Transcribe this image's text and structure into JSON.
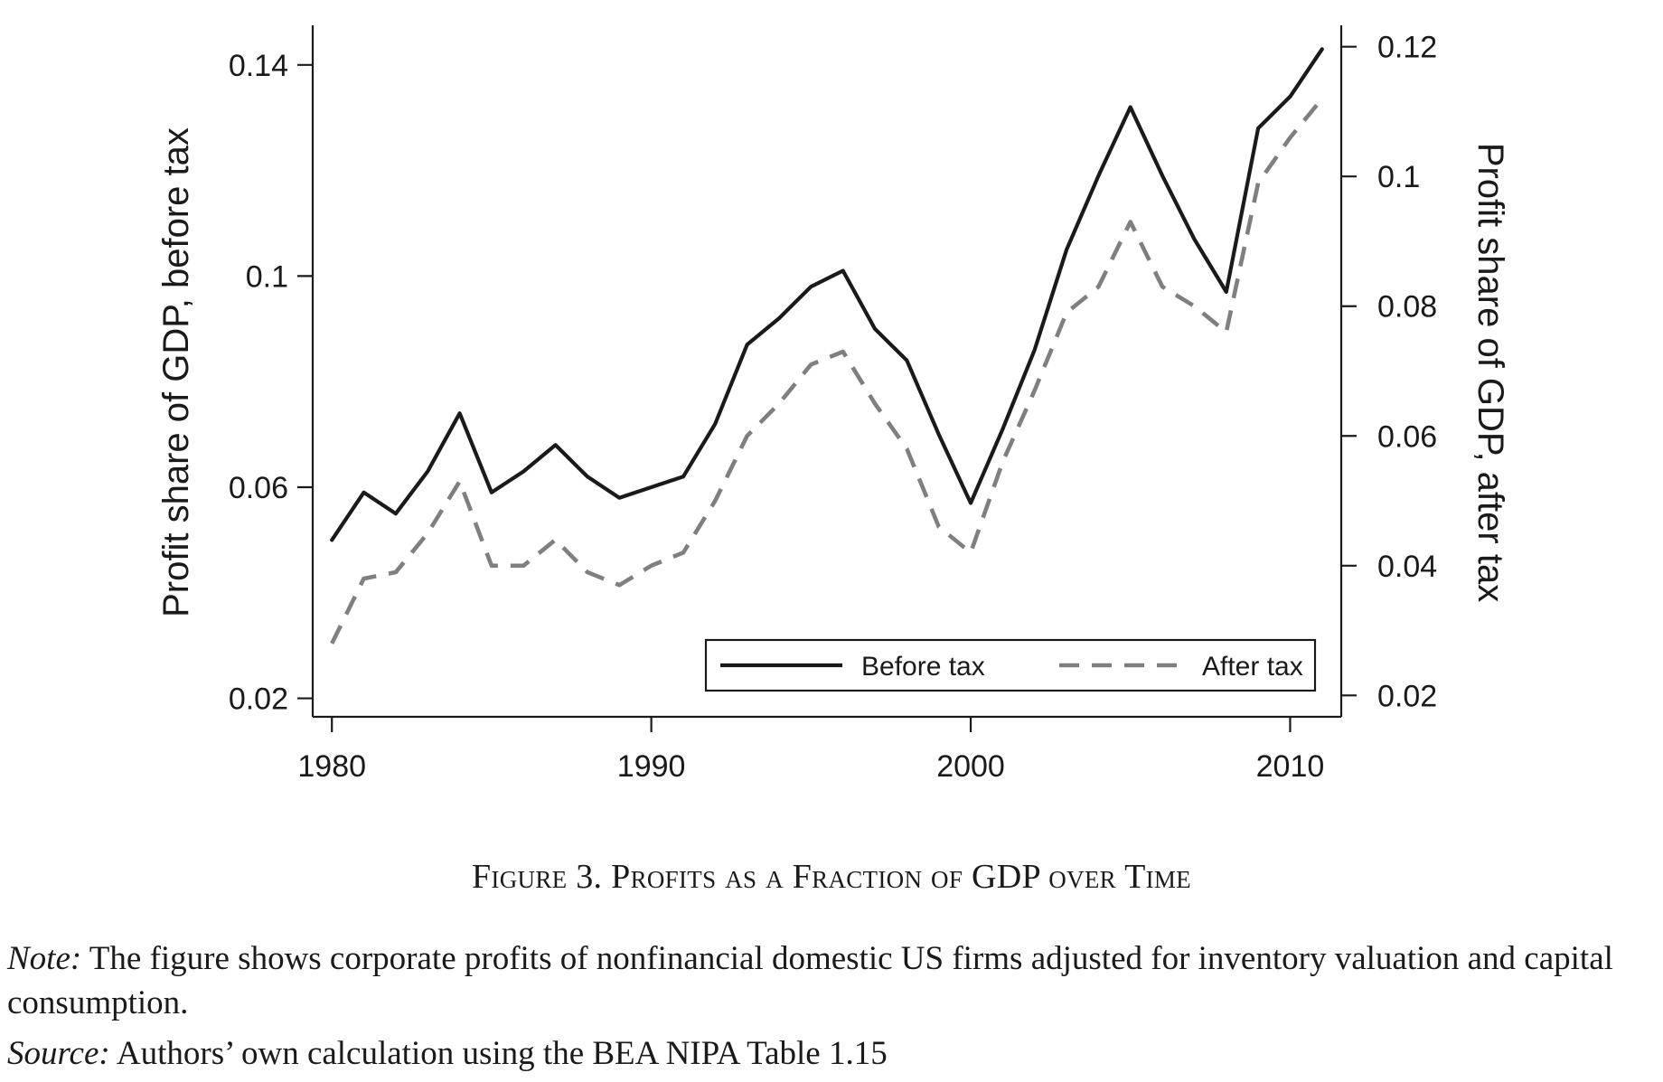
{
  "chart_data": {
    "type": "line",
    "x": [
      1980,
      1981,
      1982,
      1983,
      1984,
      1985,
      1986,
      1987,
      1988,
      1989,
      1990,
      1991,
      1992,
      1993,
      1994,
      1995,
      1996,
      1997,
      1998,
      1999,
      2000,
      2001,
      2002,
      2003,
      2004,
      2005,
      2006,
      2007,
      2008,
      2009,
      2010,
      2011
    ],
    "series": [
      {
        "name": "Before tax",
        "axis": "left",
        "color": "#1a1a1a",
        "style": "solid",
        "values": [
          0.05,
          0.059,
          0.055,
          0.063,
          0.074,
          0.059,
          0.063,
          0.068,
          0.062,
          0.058,
          0.06,
          0.062,
          0.072,
          0.087,
          0.092,
          0.098,
          0.101,
          0.09,
          0.084,
          0.07,
          0.057,
          0.071,
          0.086,
          0.105,
          0.119,
          0.132,
          0.119,
          0.107,
          0.097,
          0.128,
          0.134,
          0.143
        ]
      },
      {
        "name": "After tax",
        "axis": "right",
        "color": "#7f7f7f",
        "style": "dashed",
        "values": [
          0.028,
          0.038,
          0.039,
          0.045,
          0.053,
          0.04,
          0.04,
          0.044,
          0.039,
          0.037,
          0.04,
          0.042,
          0.05,
          0.06,
          0.065,
          0.071,
          0.073,
          0.065,
          0.058,
          0.046,
          0.042,
          0.056,
          0.067,
          0.079,
          0.083,
          0.093,
          0.083,
          0.08,
          0.076,
          0.099,
          0.106,
          0.112
        ]
      }
    ],
    "left_axis": {
      "label": "Profit share of GDP, before tax",
      "ticks": [
        0.02,
        0.06,
        0.1,
        0.14
      ],
      "tick_labels": [
        "0.02",
        "0.06",
        "0.1",
        "0.14"
      ],
      "ylim": [
        0.0165,
        0.1475
      ]
    },
    "right_axis": {
      "label": "Profit share of GDP, after tax",
      "ticks": [
        0.02,
        0.04,
        0.06,
        0.08,
        0.1,
        0.12
      ],
      "tick_labels": [
        "0.02",
        "0.04",
        "0.06",
        "0.08",
        "0.1",
        "0.12"
      ],
      "ylim": [
        0.0167,
        0.1233
      ]
    },
    "x_axis": {
      "ticks": [
        1980,
        1990,
        2000,
        2010
      ],
      "tick_labels": [
        "1980",
        "1990",
        "2000",
        "2010"
      ],
      "xlim": [
        1979.4,
        2011.6
      ]
    },
    "grid": false,
    "legend_position": "bottom-right"
  },
  "caption": {
    "figure_label": "Figure 3.",
    "title": "Profits as a Fraction of GDP over Time"
  },
  "note": {
    "label": "Note:",
    "text": "The figure shows corporate profits of nonfinancial domestic US firms adjusted for inventory valuation and capital consumption."
  },
  "source": {
    "label": "Source:",
    "text": "Authors’ own calculation using the BEA NIPA Table 1.15"
  }
}
